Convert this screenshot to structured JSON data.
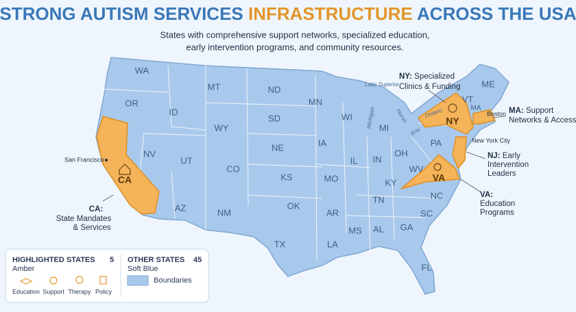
{
  "title": {
    "part1": "STRONG AUTISM SERVICES",
    "part2": "INFRASTRUCTURE",
    "part3": "ACROSS THE USA"
  },
  "subtitle": [
    "States with comprehensive support networks, specialized education,",
    "early intervention programs, and community resources."
  ],
  "map": {
    "state_labels": [
      "WA",
      "OR",
      "ID",
      "MT",
      "ND",
      "SD",
      "WY",
      "NE",
      "NV",
      "UT",
      "CO",
      "KS",
      "AZ",
      "NM",
      "OK",
      "TX",
      "MN",
      "IA",
      "MO",
      "AR",
      "LA",
      "MS",
      "AL",
      "WI",
      "MI",
      "IL",
      "IN",
      "OH",
      "KY",
      "TN",
      "WV",
      "PA",
      "GA",
      "FL",
      "SC",
      "NC",
      "ME",
      "VT"
    ],
    "highlighted_labels": [
      "CA",
      "NY",
      "VA",
      "MA"
    ],
    "cities": [
      "San Francisco",
      "Boston",
      "New York City"
    ],
    "water": [
      "Lake Superior",
      "Huron",
      "Michigan",
      "Ontario",
      "Erie"
    ],
    "callouts": [
      {
        "abbr": "NY:",
        "lines": [
          "Specialized",
          "Clinics & Funding"
        ]
      },
      {
        "abbr": "MA:",
        "lines": [
          "Support",
          "Networks & Access"
        ]
      },
      {
        "abbr": "NJ:",
        "lines": [
          "Early",
          "Intervention",
          "Leaders"
        ]
      },
      {
        "abbr": "VA:",
        "lines": [
          "Education",
          "Programs"
        ]
      },
      {
        "abbr": "CA:",
        "lines": [
          "State Mandates",
          "& Services"
        ]
      }
    ]
  },
  "legend": {
    "highlighted": {
      "title": "HIGHLIGHTED STATES",
      "count": "5",
      "color": "Amber",
      "icons": [
        "Education",
        "Support",
        "Therapy",
        "Policy"
      ]
    },
    "other": {
      "title": "OTHER STATES",
      "count": "45",
      "color": "Soft Blue",
      "swatch": "Boundaries"
    }
  }
}
